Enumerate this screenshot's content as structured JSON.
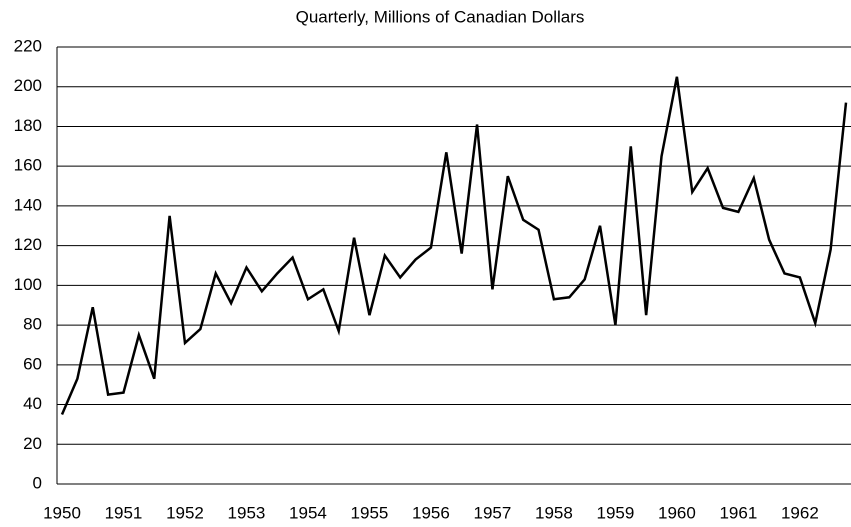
{
  "chart_data": {
    "type": "line",
    "title": "Quarterly, Millions of Canadian Dollars",
    "x": [
      1950,
      1950.25,
      1950.5,
      1950.75,
      1951,
      1951.25,
      1951.5,
      1951.75,
      1952,
      1952.25,
      1952.5,
      1952.75,
      1953,
      1953.25,
      1953.5,
      1953.75,
      1954,
      1954.25,
      1954.5,
      1954.75,
      1955,
      1955.25,
      1955.5,
      1955.75,
      1956,
      1956.25,
      1956.5,
      1956.75,
      1957,
      1957.25,
      1957.5,
      1957.75,
      1958,
      1958.25,
      1958.5,
      1958.75,
      1959,
      1959.25,
      1959.5,
      1959.75,
      1960,
      1960.25,
      1960.5,
      1960.75,
      1961,
      1961.25,
      1961.5,
      1961.75,
      1962,
      1962.25,
      1962.5,
      1962.75
    ],
    "series": [
      {
        "color": "#000000",
        "values": [
          35,
          53,
          89,
          45,
          46,
          75,
          53,
          135,
          71,
          78,
          106,
          91,
          109,
          97,
          106,
          114,
          93,
          98,
          77,
          124,
          85,
          115,
          104,
          113,
          119,
          167,
          116,
          181,
          98,
          155,
          133,
          128,
          93,
          94,
          103,
          130,
          80,
          170,
          85,
          165,
          205,
          147,
          159,
          139,
          137,
          154,
          123,
          106,
          104,
          81,
          118,
          192
        ]
      }
    ],
    "xlim": [
      1950,
      1962.75
    ],
    "xticks": [
      1950,
      1951,
      1952,
      1953,
      1954,
      1955,
      1956,
      1957,
      1958,
      1959,
      1960,
      1961,
      1962
    ],
    "ylim": [
      0,
      220
    ],
    "yticks": [
      0,
      20,
      40,
      60,
      80,
      100,
      120,
      140,
      160,
      180,
      200,
      220
    ],
    "grid": true
  }
}
